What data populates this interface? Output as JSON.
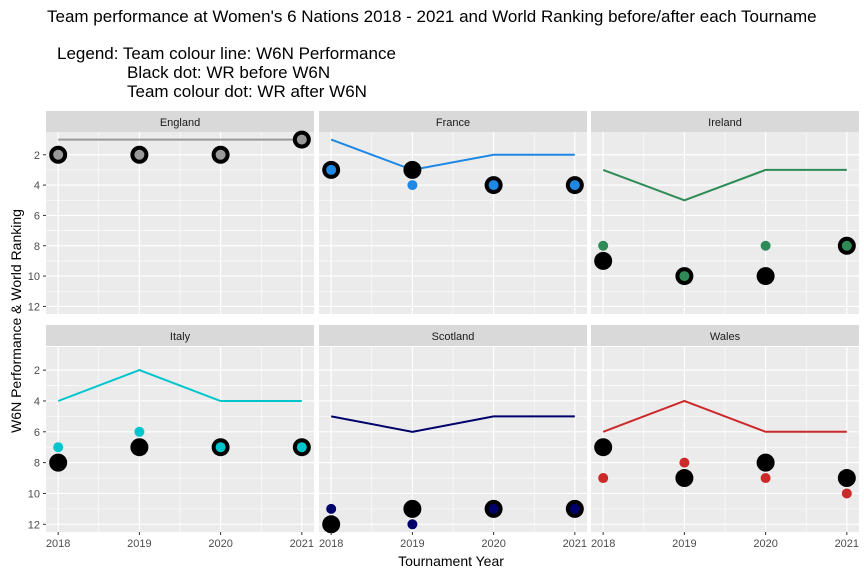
{
  "chart_data": {
    "type": "line",
    "title": "Team performance at Women's 6 Nations 2018 - 2021 and World Ranking before/after each Tourname",
    "subtitle_lines": [
      "Legend: Team colour line: W6N Performance",
      "Black dot: WR before W6N",
      "Team colour dot: WR after W6N"
    ],
    "xlabel": "Tournament Year",
    "ylabel": "W6N Performance & World Ranking",
    "x": [
      2018,
      2019,
      2020,
      2021
    ],
    "x_ticks": [
      "2018",
      "2019",
      "2020",
      "2021"
    ],
    "y_ticks": [
      2,
      4,
      6,
      8,
      10,
      12
    ],
    "y_ticks_labels": [
      "2",
      "4",
      "6",
      "8",
      "10",
      "12"
    ],
    "ylim": [
      12.5,
      0.5
    ],
    "y_reversed": true,
    "grid": true,
    "panels": [
      {
        "team": "England",
        "color": "#999999",
        "w6n": [
          1,
          1,
          1,
          1
        ],
        "wr_before": [
          2,
          2,
          2,
          1
        ],
        "wr_after": [
          2,
          2,
          2,
          1
        ]
      },
      {
        "team": "France",
        "color": "#1e88e5",
        "w6n": [
          1,
          3,
          2,
          2
        ],
        "wr_before": [
          3,
          3,
          4,
          4
        ],
        "wr_after": [
          3,
          4,
          4,
          4
        ]
      },
      {
        "team": "Ireland",
        "color": "#2e8b57",
        "w6n": [
          3,
          5,
          3,
          3
        ],
        "wr_before": [
          9,
          10,
          10,
          8
        ],
        "wr_after": [
          8,
          10,
          8,
          8
        ]
      },
      {
        "team": "Italy",
        "color": "#00c5cd",
        "w6n": [
          4,
          2,
          4,
          4
        ],
        "wr_before": [
          8,
          7,
          7,
          7
        ],
        "wr_after": [
          7,
          6,
          7,
          7
        ]
      },
      {
        "team": "Scotland",
        "color": "#00006b",
        "w6n": [
          5,
          6,
          5,
          5
        ],
        "wr_before": [
          12,
          11,
          11,
          11
        ],
        "wr_after": [
          11,
          12,
          11,
          11
        ]
      },
      {
        "team": "Wales",
        "color": "#cc2929",
        "w6n": [
          6,
          4,
          6,
          6
        ],
        "wr_before": [
          7,
          9,
          8,
          9
        ],
        "wr_after": [
          9,
          8,
          9,
          10
        ]
      }
    ]
  }
}
